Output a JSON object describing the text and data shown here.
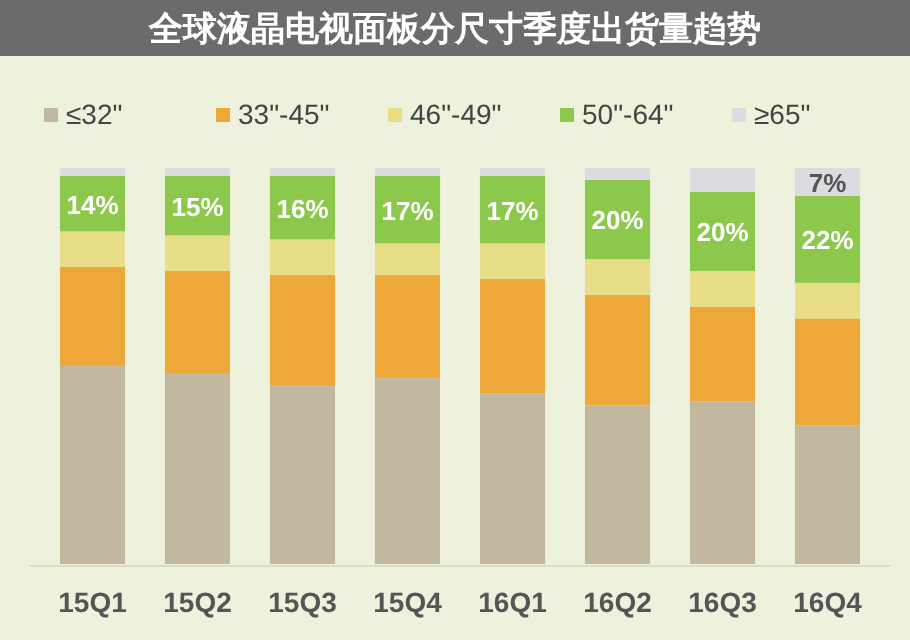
{
  "chart_data": {
    "type": "bar",
    "stacked": true,
    "title": "全球液晶电视面板分尺寸季度出货量趋势",
    "legend": "top",
    "categories": [
      "15Q1",
      "15Q2",
      "15Q3",
      "15Q4",
      "16Q1",
      "16Q2",
      "16Q3",
      "16Q4"
    ],
    "series": [
      {
        "name": "≤32\"",
        "color": "#c2b8a0",
        "values": [
          0.5,
          0.48,
          0.45,
          0.47,
          0.43,
          0.4,
          0.41,
          0.35
        ]
      },
      {
        "name": "33\"-45\"",
        "color": "#eea83a",
        "values": [
          0.25,
          0.26,
          0.28,
          0.26,
          0.29,
          0.28,
          0.24,
          0.27
        ]
      },
      {
        "name": "46\"-49\"",
        "color": "#e8de88",
        "values": [
          0.09,
          0.09,
          0.09,
          0.08,
          0.09,
          0.09,
          0.09,
          0.09
        ]
      },
      {
        "name": "50\"-64\"",
        "color": "#8cc84b",
        "values": [
          0.14,
          0.15,
          0.16,
          0.17,
          0.17,
          0.2,
          0.2,
          0.22
        ],
        "value_labels": [
          "14%",
          "15%",
          "16%",
          "17%",
          "17%",
          "20%",
          "20%",
          "22%"
        ]
      },
      {
        "name": "≥65\"",
        "color": "#dcdce0",
        "values": [
          0.02,
          0.02,
          0.02,
          0.02,
          0.02,
          0.03,
          0.06,
          0.07
        ],
        "value_labels": [
          null,
          null,
          null,
          null,
          null,
          null,
          null,
          "7%"
        ]
      }
    ]
  }
}
